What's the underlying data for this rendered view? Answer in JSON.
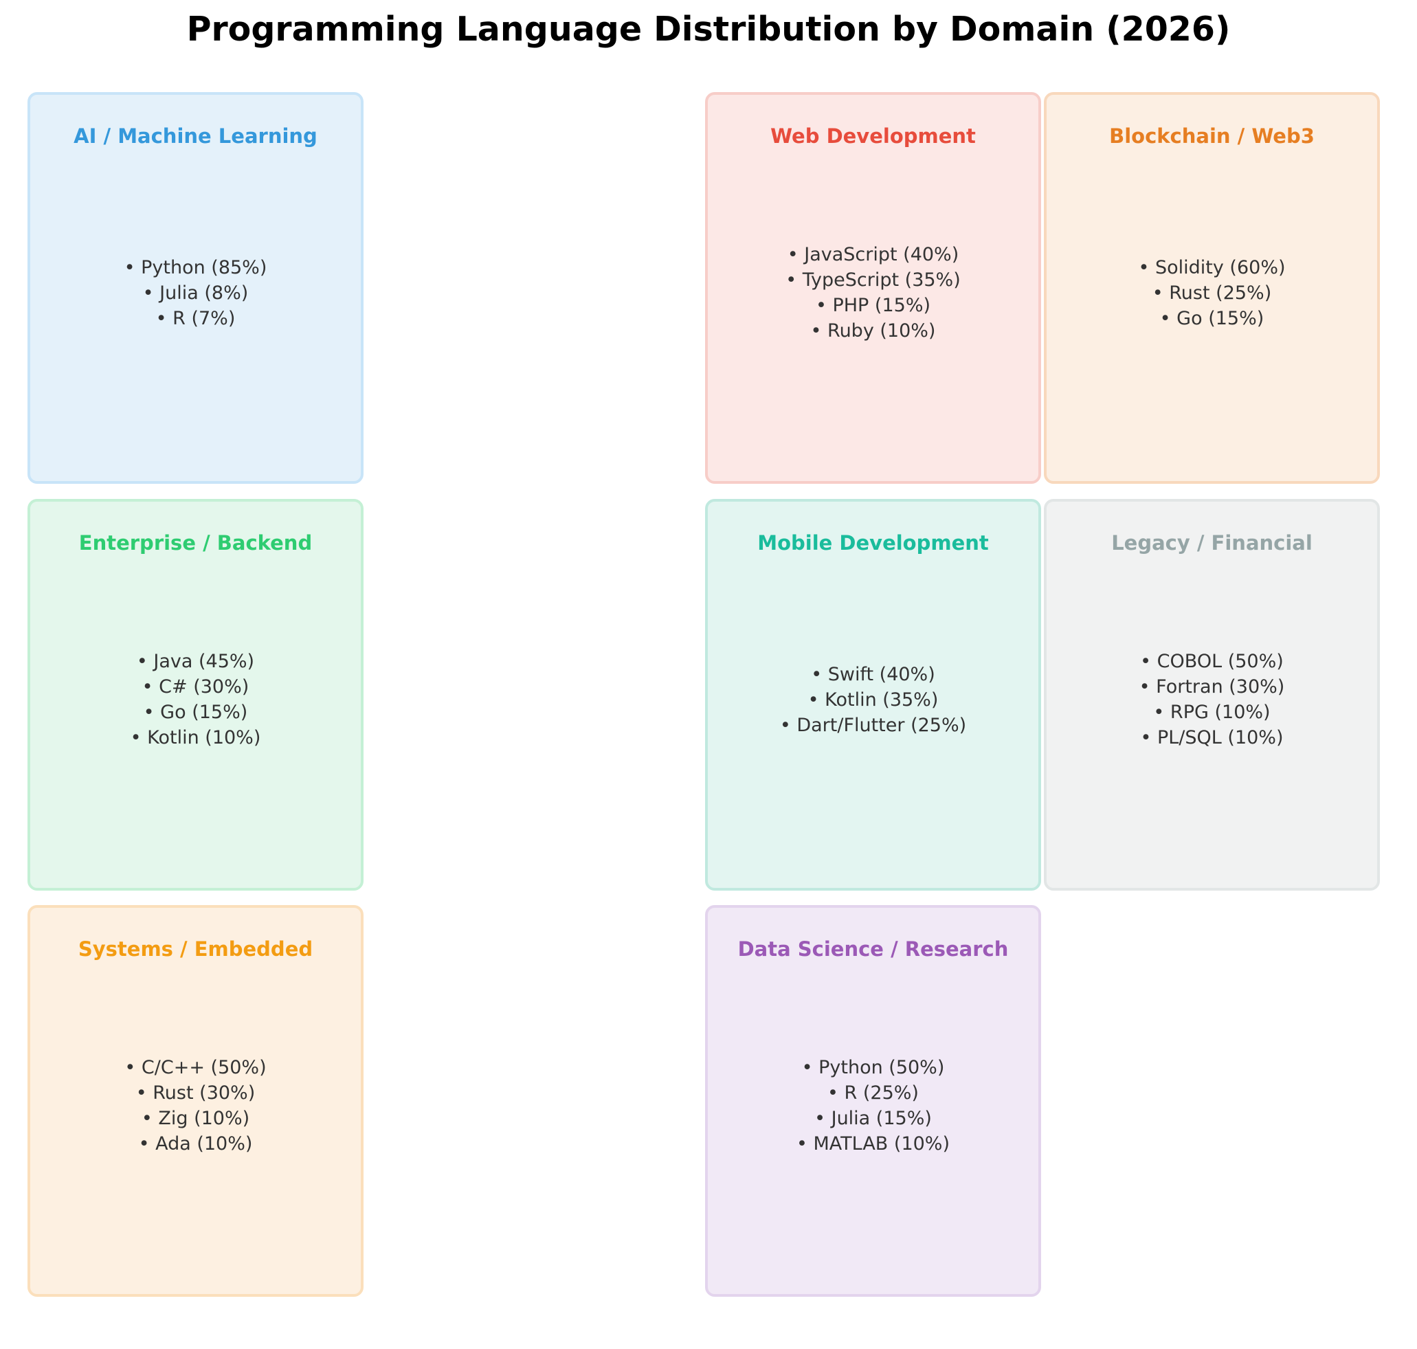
{
  "title": "Programming Language Distribution by Domain (2026)",
  "domains": {
    "ai": {
      "name": "AI / Machine Learning",
      "color": "#3498db",
      "bg": "#e4f1fa",
      "border": "#c8e4f8",
      "items": [
        "• Python (85%)",
        "• Julia (8%)",
        "• R (7%)"
      ]
    },
    "web": {
      "name": "Web Development",
      "color": "#e74c3c",
      "bg": "#fce8e6",
      "border": "#f7cdc8",
      "items": [
        "• JavaScript (40%)",
        "• TypeScript (35%)",
        "• PHP (15%)",
        "• Ruby (10%)"
      ]
    },
    "blockchain": {
      "name": "Blockchain / Web3",
      "color": "#e67e22",
      "bg": "#fcefe3",
      "border": "#f8d8bc",
      "items": [
        "• Solidity (60%)",
        "• Rust (25%)",
        "• Go (15%)"
      ]
    },
    "enterprise": {
      "name": "Enterprise / Backend",
      "color": "#2ecc71",
      "bg": "#e4f7ec",
      "border": "#c4f0d5",
      "items": [
        "• Java (45%)",
        "• C# (30%)",
        "• Go (15%)",
        "• Kotlin (10%)"
      ]
    },
    "mobile": {
      "name": "Mobile Development",
      "color": "#1abc9c",
      "bg": "#e3f5f1",
      "border": "#c0e9df",
      "items": [
        "• Swift (40%)",
        "• Kotlin (35%)",
        "• Dart/Flutter (25%)"
      ]
    },
    "legacy": {
      "name": "Legacy / Financial",
      "color": "#95a5a6",
      "bg": "#f1f2f2",
      "border": "#e2e6e6",
      "items": [
        "• COBOL (50%)",
        "• Fortran (30%)",
        "• RPG (10%)",
        "• PL/SQL (10%)"
      ]
    },
    "systems": {
      "name": "Systems / Embedded",
      "color": "#f39c12",
      "bg": "#fdf0e1",
      "border": "#fbdfbb",
      "items": [
        "• C/C++ (50%)",
        "• Rust (30%)",
        "• Zig (10%)",
        "• Ada (10%)"
      ]
    },
    "datascience": {
      "name": "Data Science / Research",
      "color": "#9b59b6",
      "bg": "#f1e9f6",
      "border": "#e3d4ed",
      "items": [
        "• Python (50%)",
        "• R (25%)",
        "• Julia (15%)",
        "• MATLAB (10%)"
      ]
    }
  }
}
